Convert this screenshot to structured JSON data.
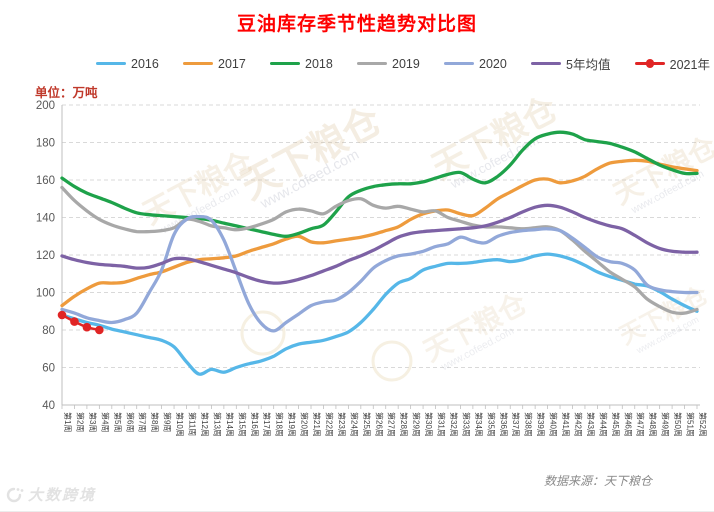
{
  "title": "豆油库存季节性趋势对比图",
  "unit_label": "单位：万吨",
  "source_label": "数据来源：天下粮仓",
  "brand_watermark": "大数跨境",
  "plot_watermark": {
    "text": "天下粮仓",
    "subtext": "www.cofeed.com"
  },
  "colors": {
    "title": "#ff0000",
    "unit_label": "#c0392b",
    "grid": "#d9d9d9",
    "axis": "#bfbfbf",
    "y_tick_label": "#595959",
    "x_tick_label": "#3f3f3f",
    "source_label": "#8a8a8a"
  },
  "chart_data": {
    "type": "line",
    "title": "豆油库存季节性趋势对比图",
    "ylabel": "单位：万吨",
    "ylim": [
      40,
      200
    ],
    "y_ticks": [
      40,
      60,
      80,
      100,
      120,
      140,
      160,
      180,
      200
    ],
    "grid": "horizontal-dashed",
    "legend_position": "top",
    "x_labels": [
      "第1周",
      "第2周",
      "第3周",
      "第4周",
      "第5周",
      "第6周",
      "第7周",
      "第8周",
      "第9周",
      "第10周",
      "第11周",
      "第12周",
      "第13周",
      "第14周",
      "第15周",
      "第16周",
      "第17周",
      "第18周",
      "第19周",
      "第20周",
      "第21周",
      "第22周",
      "第23周",
      "第24周",
      "第25周",
      "第26周",
      "第27周",
      "第28周",
      "第29周",
      "第30周",
      "第31周",
      "第32周",
      "第33周",
      "第34周",
      "第35周",
      "第36周",
      "第37周",
      "第38周",
      "第39周",
      "第40周",
      "第41周",
      "第42周",
      "第43周",
      "第44周",
      "第45周",
      "第46周",
      "第47周",
      "第48周",
      "第49周",
      "第50周",
      "第51周",
      "第52周"
    ],
    "series": [
      {
        "name": "2016",
        "color": "#56b7e8",
        "marker": false,
        "values": [
          88,
          86,
          84,
          82.5,
          80.5,
          79,
          77.5,
          76,
          74.5,
          71,
          63,
          56.5,
          59,
          57.5,
          60,
          62,
          63.5,
          66,
          70,
          72.5,
          73.5,
          74.5,
          76.5,
          79,
          84,
          91,
          99,
          105,
          107.5,
          112,
          114,
          115.5,
          115.5,
          116,
          117,
          117.5,
          116.5,
          117.5,
          119.5,
          120.5,
          119.5,
          117.5,
          114.5,
          111,
          108.5,
          106.5,
          104.5,
          103.5,
          100.5,
          96.5,
          93,
          90
        ]
      },
      {
        "name": "2017",
        "color": "#ee9b3d",
        "marker": false,
        "values": [
          93,
          98,
          102,
          105,
          105,
          105.5,
          107.5,
          109.5,
          111,
          113.5,
          116,
          117.5,
          118,
          118.5,
          119.5,
          122,
          124,
          126,
          128.5,
          130,
          127,
          126.5,
          127.5,
          128.5,
          129.5,
          131,
          133,
          135,
          139,
          142,
          143.5,
          144,
          142,
          141,
          145,
          150,
          153.5,
          157,
          160,
          160.5,
          158.5,
          159.5,
          162,
          166,
          169,
          170,
          170.5,
          170,
          168.5,
          167,
          166,
          165
        ]
      },
      {
        "name": "2018",
        "color": "#1ea24a",
        "marker": false,
        "values": [
          161,
          156.5,
          153,
          150.5,
          148,
          145,
          142.5,
          141.5,
          141,
          140.5,
          140,
          139.5,
          138.5,
          137,
          135.5,
          134,
          132.5,
          131,
          130,
          131.5,
          134,
          136,
          143,
          151,
          154.5,
          156.5,
          157.5,
          158,
          158,
          159,
          161,
          163,
          164,
          160.5,
          158.5,
          162,
          168,
          176,
          182,
          184.5,
          185.5,
          184.5,
          181.5,
          180.5,
          179.5,
          177.5,
          175,
          171.5,
          168,
          165.5,
          163.5,
          163.5
        ]
      },
      {
        "name": "2019",
        "color": "#a8a8a8",
        "marker": false,
        "values": [
          156,
          149,
          143.5,
          139,
          136,
          134,
          132.5,
          132.5,
          133,
          134.5,
          139,
          138,
          135.5,
          134.5,
          133.5,
          134.5,
          136.5,
          139,
          143,
          144.5,
          143.5,
          142,
          146,
          149,
          150,
          146.5,
          145,
          146,
          144.5,
          143,
          143.5,
          140,
          138,
          136,
          135,
          135,
          134.5,
          134,
          134.5,
          135,
          133,
          128,
          122,
          116.5,
          111,
          107,
          103,
          96.5,
          92.5,
          89.5,
          89,
          91
        ]
      },
      {
        "name": "2020",
        "color": "#92a8d9",
        "marker": false,
        "values": [
          91,
          89,
          86.5,
          85,
          84,
          85.5,
          89,
          100,
          112,
          131,
          139,
          140.5,
          138.5,
          128,
          111,
          94,
          83.5,
          79.5,
          84,
          88.5,
          93,
          95,
          96,
          100,
          106,
          113,
          117,
          119.5,
          120.5,
          122,
          124.5,
          126,
          129.5,
          127.5,
          126.5,
          130,
          132,
          133,
          133.5,
          134,
          133,
          129,
          124,
          119,
          116.5,
          115.5,
          112,
          104,
          101.5,
          100.5,
          100,
          100
        ]
      },
      {
        "name": "5年均值",
        "color": "#7d62a5",
        "marker": false,
        "values": [
          119.5,
          117.5,
          116,
          115,
          114.5,
          114,
          113,
          113.5,
          115.5,
          118,
          118,
          116.5,
          114.5,
          112.5,
          110.5,
          108,
          106,
          105,
          105.5,
          107,
          109,
          111.5,
          114,
          117,
          119.5,
          122.5,
          126,
          129.5,
          131.5,
          132.5,
          133,
          133.5,
          134,
          134.5,
          135.5,
          137.5,
          140,
          143,
          145.5,
          146.5,
          145.5,
          143,
          140,
          137.5,
          135.5,
          134,
          130.5,
          126.5,
          123.5,
          122,
          121.5,
          121.5
        ]
      },
      {
        "name": "2021年",
        "color": "#e02525",
        "marker": true,
        "values": [
          88,
          84.5,
          81.5,
          80,
          null,
          null,
          null,
          null,
          null,
          null,
          null,
          null,
          null,
          null,
          null,
          null,
          null,
          null,
          null,
          null,
          null,
          null,
          null,
          null,
          null,
          null,
          null,
          null,
          null,
          null,
          null,
          null,
          null,
          null,
          null,
          null,
          null,
          null,
          null,
          null,
          null,
          null,
          null,
          null,
          null,
          null,
          null,
          null,
          null,
          null,
          null,
          null
        ]
      }
    ]
  }
}
